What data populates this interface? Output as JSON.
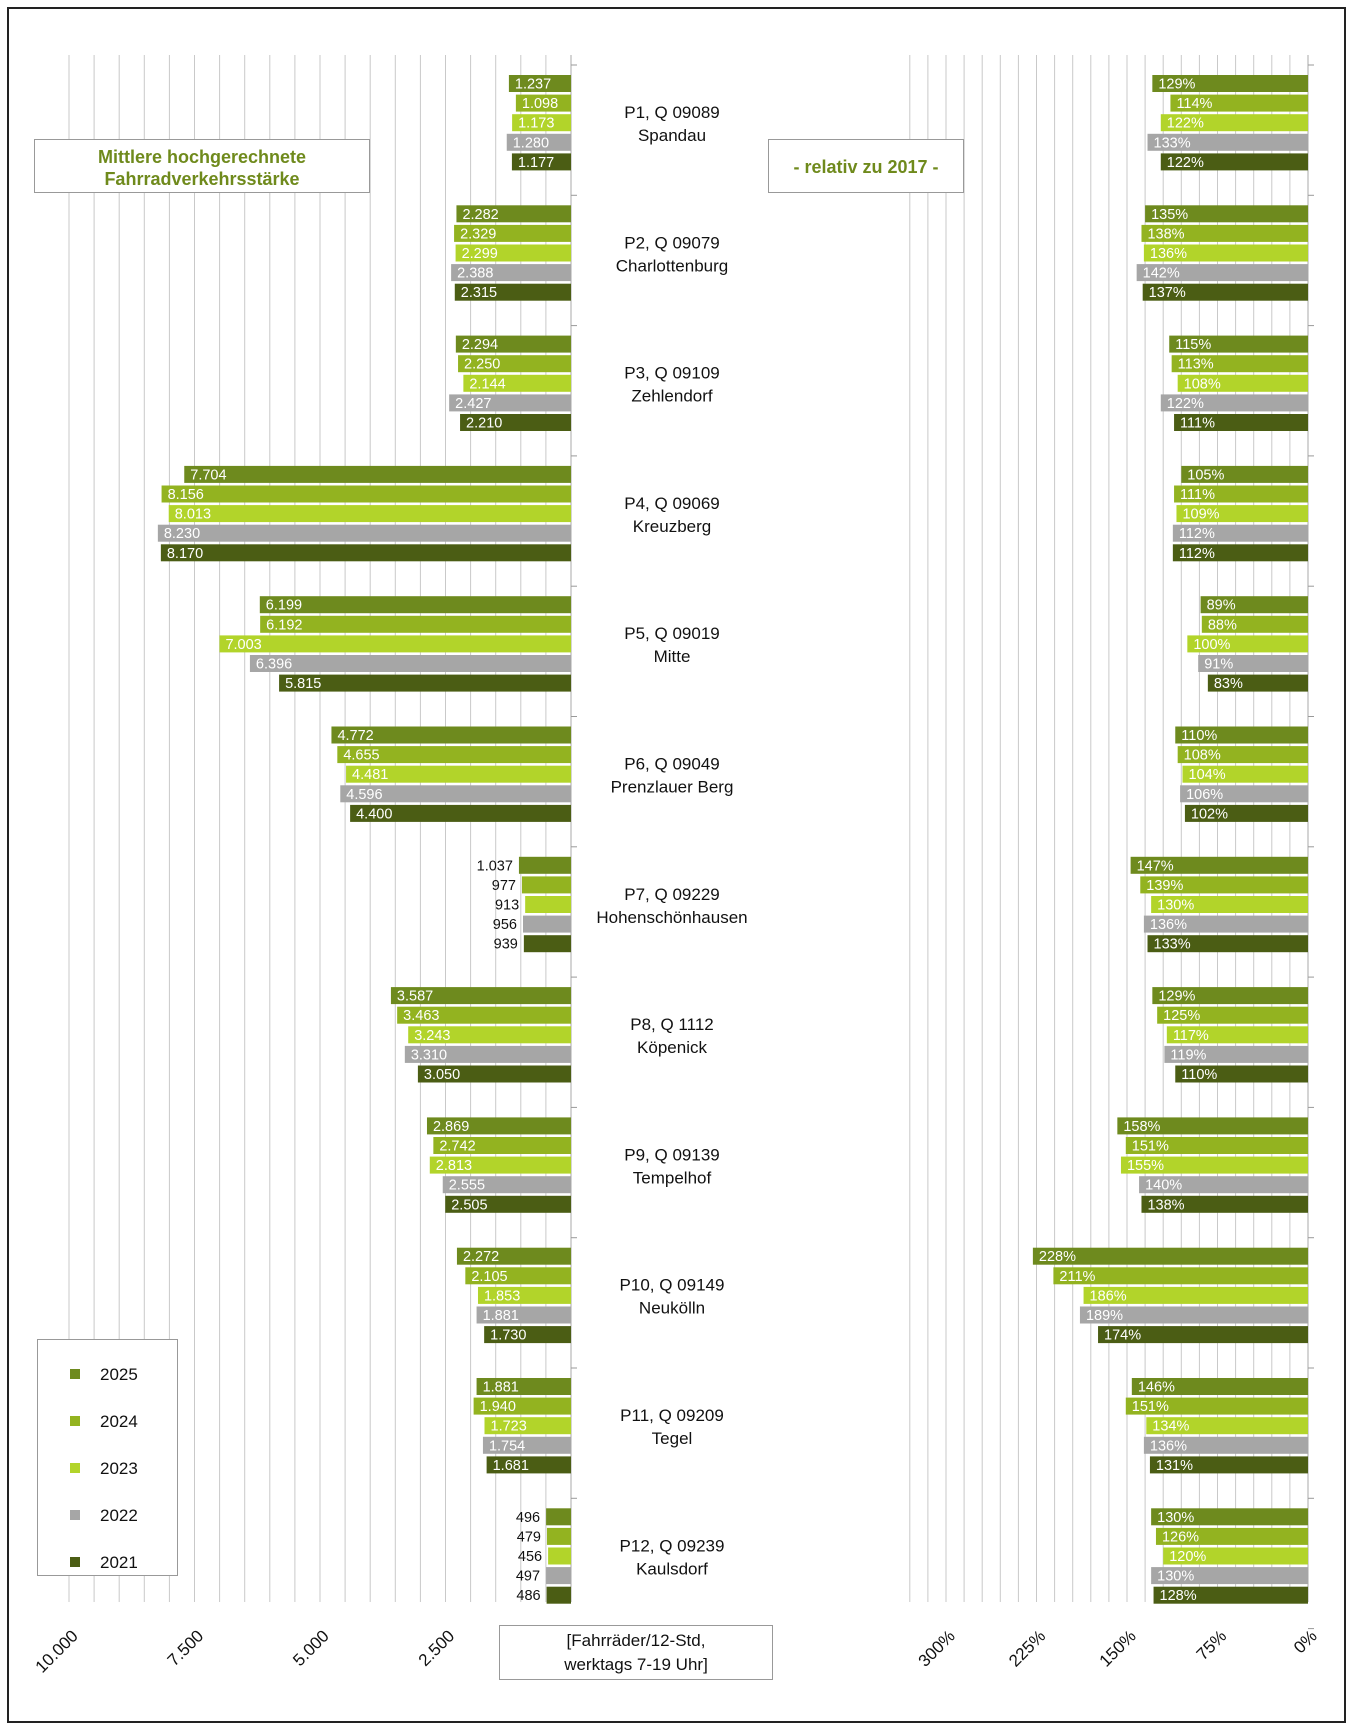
{
  "title": [
    "Mittlere hochgerechnete",
    "Fahrradverkehrsstärke"
  ],
  "relative_label": "- relativ zu 2017 -",
  "unit_label": [
    "[Fahrräder/12-Std,",
    "werktags 7-19 Uhr]"
  ],
  "colors": {
    "2025": "#6e8a1e",
    "2024": "#93b320",
    "2023": "#b2d42a",
    "2022": "#a6a6a6",
    "2021": "#4b5d14"
  },
  "chart_data": {
    "type": "bar",
    "series_order": [
      "2025",
      "2024",
      "2023",
      "2022",
      "2021"
    ],
    "legend": [
      "2025",
      "2024",
      "2023",
      "2022",
      "2021"
    ],
    "left_axis": {
      "ticks": [
        "10.000",
        "7.500",
        "5.000",
        "2.500"
      ],
      "range": [
        0,
        10000
      ]
    },
    "right_axis": {
      "ticks": [
        "300%",
        "225%",
        "150%",
        "75%",
        "0%"
      ],
      "range": [
        0,
        300
      ]
    },
    "stations": [
      {
        "name": "P1, Q 09089",
        "district": "Spandau",
        "values": [
          1237,
          1098,
          1173,
          1280,
          1177
        ],
        "labels": [
          "1.237",
          "1.098",
          "1.173",
          "1.280",
          "1.177"
        ],
        "percent": [
          129,
          114,
          122,
          133,
          122
        ]
      },
      {
        "name": "P2, Q 09079",
        "district": "Charlottenburg",
        "values": [
          2282,
          2329,
          2299,
          2388,
          2315
        ],
        "labels": [
          "2.282",
          "2.329",
          "2.299",
          "2.388",
          "2.315"
        ],
        "percent": [
          135,
          138,
          136,
          142,
          137
        ]
      },
      {
        "name": "P3, Q 09109",
        "district": "Zehlendorf",
        "values": [
          2294,
          2250,
          2144,
          2427,
          2210
        ],
        "labels": [
          "2.294",
          "2.250",
          "2.144",
          "2.427",
          "2.210"
        ],
        "percent": [
          115,
          113,
          108,
          122,
          111
        ]
      },
      {
        "name": "P4, Q 09069",
        "district": "Kreuzberg",
        "values": [
          7704,
          8156,
          8013,
          8230,
          8170
        ],
        "labels": [
          "7.704",
          "8.156",
          "8.013",
          "8.230",
          "8.170"
        ],
        "percent": [
          105,
          111,
          109,
          112,
          112
        ]
      },
      {
        "name": "P5, Q 09019",
        "district": "Mitte",
        "values": [
          6199,
          6192,
          7003,
          6396,
          5815
        ],
        "labels": [
          "6.199",
          "6.192",
          "7.003",
          "6.396",
          "5.815"
        ],
        "percent": [
          89,
          88,
          100,
          91,
          83
        ]
      },
      {
        "name": "P6, Q 09049",
        "district": "Prenzlauer Berg",
        "values": [
          4772,
          4655,
          4481,
          4596,
          4400
        ],
        "labels": [
          "4.772",
          "4.655",
          "4.481",
          "4.596",
          "4.400"
        ],
        "percent": [
          110,
          108,
          104,
          106,
          102
        ]
      },
      {
        "name": "P7, Q 09229",
        "district": "Hohenschönhausen",
        "values": [
          1037,
          977,
          913,
          956,
          939
        ],
        "labels": [
          "1.037",
          "977",
          "913",
          "956",
          "939"
        ],
        "percent": [
          147,
          139,
          130,
          136,
          133
        ]
      },
      {
        "name": "P8, Q 1112",
        "district": "Köpenick",
        "values": [
          3587,
          3463,
          3243,
          3310,
          3050
        ],
        "labels": [
          "3.587",
          "3.463",
          "3.243",
          "3.310",
          "3.050"
        ],
        "percent": [
          129,
          125,
          117,
          119,
          110
        ]
      },
      {
        "name": "P9, Q 09139",
        "district": "Tempelhof",
        "values": [
          2869,
          2742,
          2813,
          2555,
          2505
        ],
        "labels": [
          "2.869",
          "2.742",
          "2.813",
          "2.555",
          "2.505"
        ],
        "percent": [
          158,
          151,
          155,
          140,
          138
        ]
      },
      {
        "name": "P10, Q 09149",
        "district": "Neukölln",
        "values": [
          2272,
          2105,
          1853,
          1881,
          1730
        ],
        "labels": [
          "2.272",
          "2.105",
          "1.853",
          "1.881",
          "1.730"
        ],
        "percent": [
          228,
          211,
          186,
          189,
          174
        ]
      },
      {
        "name": "P11, Q 09209",
        "district": "Tegel",
        "values": [
          1881,
          1940,
          1723,
          1754,
          1681
        ],
        "labels": [
          "1.881",
          "1.940",
          "1.723",
          "1.754",
          "1.681"
        ],
        "percent": [
          146,
          151,
          134,
          136,
          131
        ]
      },
      {
        "name": "P12, Q 09239",
        "district": "Kaulsdorf",
        "values": [
          496,
          479,
          456,
          497,
          486
        ],
        "labels": [
          "496",
          "479",
          "456",
          "497",
          "486"
        ],
        "percent": [
          130,
          126,
          120,
          130,
          128
        ]
      }
    ]
  }
}
